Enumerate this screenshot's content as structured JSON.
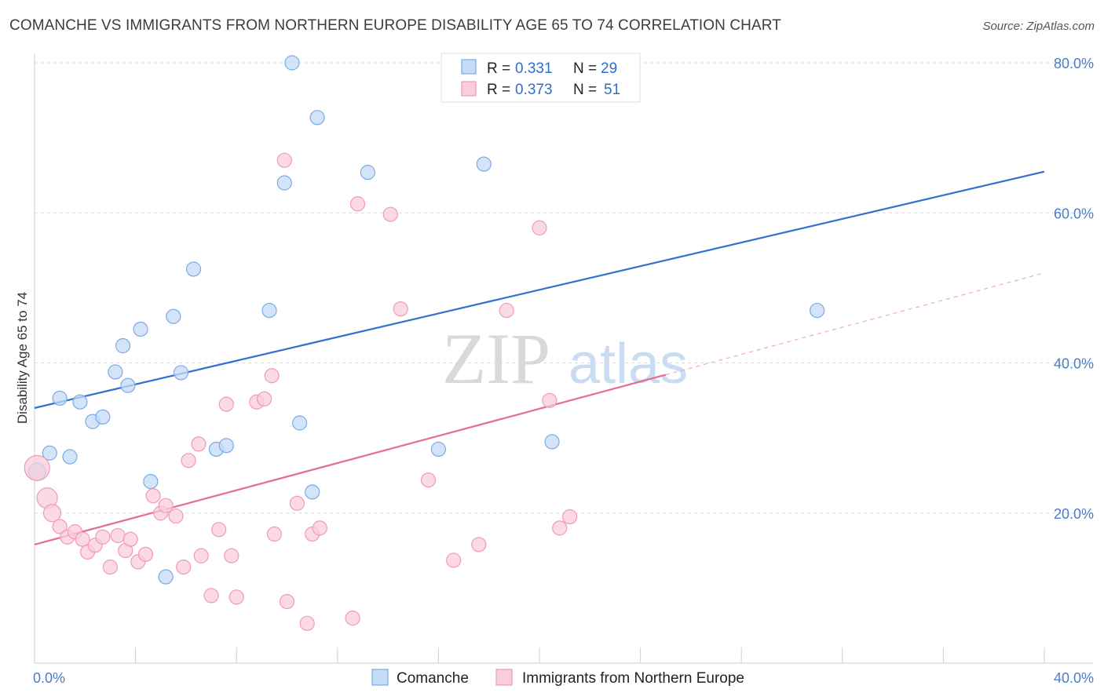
{
  "title": "COMANCHE VS IMMIGRANTS FROM NORTHERN EUROPE DISABILITY AGE 65 TO 74 CORRELATION CHART",
  "source": "Source: ZipAtlas.com",
  "chart_data": {
    "type": "scatter",
    "ylabel": "Disability Age 65 to 74",
    "xlim": [
      0,
      40
    ],
    "ylim": [
      0,
      80
    ],
    "x_tick_labels": [
      {
        "value": 0,
        "label": "0.0%"
      },
      {
        "value": 40,
        "label": "40.0%"
      }
    ],
    "y_tick_labels": [
      {
        "value": 20,
        "label": "20.0%"
      },
      {
        "value": 40,
        "label": "40.0%"
      },
      {
        "value": 60,
        "label": "60.0%"
      },
      {
        "value": 80,
        "label": "80.0%"
      }
    ],
    "grid": true,
    "watermark": {
      "zip": "ZIP",
      "atlas": "atlas"
    },
    "legend": {
      "rows": [
        {
          "r_label": "R =",
          "r_value": "0.331",
          "n_label": "N =",
          "n_value": "29"
        },
        {
          "r_label": "R =",
          "r_value": "0.373",
          "n_label": "N =",
          "n_value": "51"
        }
      ]
    },
    "series": [
      {
        "name": "Comanche",
        "color": "#7aaae8",
        "fill": "#c5dbf6",
        "trend": {
          "x0": 0,
          "y0": 34.0,
          "x1": 40,
          "y1": 65.5,
          "dashed_from": null
        },
        "points": [
          [
            0.1,
            25.5
          ],
          [
            0.6,
            28.0
          ],
          [
            1.0,
            35.3
          ],
          [
            1.4,
            27.5
          ],
          [
            1.8,
            34.8
          ],
          [
            2.3,
            32.2
          ],
          [
            2.7,
            32.8
          ],
          [
            3.2,
            38.8
          ],
          [
            3.5,
            42.3
          ],
          [
            3.7,
            37.0
          ],
          [
            4.2,
            44.5
          ],
          [
            4.6,
            24.2
          ],
          [
            5.2,
            11.5
          ],
          [
            5.5,
            46.2
          ],
          [
            5.8,
            38.7
          ],
          [
            6.3,
            52.5
          ],
          [
            7.2,
            28.5
          ],
          [
            7.6,
            29.0
          ],
          [
            9.3,
            47.0
          ],
          [
            9.9,
            64.0
          ],
          [
            10.2,
            80.0
          ],
          [
            10.5,
            32.0
          ],
          [
            11.0,
            22.8
          ],
          [
            11.2,
            72.7
          ],
          [
            13.2,
            65.4
          ],
          [
            16.0,
            28.5
          ],
          [
            17.8,
            66.5
          ],
          [
            20.5,
            29.5
          ],
          [
            31.0,
            47.0
          ]
        ]
      },
      {
        "name": "Immigrants from Northern Europe",
        "color": "#f09ab4",
        "fill": "#f9cdd9",
        "trend": {
          "x0": 0,
          "y0": 15.8,
          "x1": 40,
          "y1": 52.0,
          "solid_until_x": 25.0
        },
        "points": [
          [
            0.1,
            26.0
          ],
          [
            0.5,
            22.0
          ],
          [
            0.7,
            20.0
          ],
          [
            1.0,
            18.2
          ],
          [
            1.3,
            16.8
          ],
          [
            1.6,
            17.5
          ],
          [
            1.9,
            16.5
          ],
          [
            2.1,
            14.8
          ],
          [
            2.4,
            15.7
          ],
          [
            2.7,
            16.8
          ],
          [
            3.0,
            12.8
          ],
          [
            3.3,
            17.0
          ],
          [
            3.6,
            15.0
          ],
          [
            3.8,
            16.5
          ],
          [
            4.1,
            13.5
          ],
          [
            4.4,
            14.5
          ],
          [
            4.7,
            22.3
          ],
          [
            5.0,
            20.0
          ],
          [
            5.2,
            21.0
          ],
          [
            5.6,
            19.6
          ],
          [
            5.9,
            12.8
          ],
          [
            6.1,
            27.0
          ],
          [
            6.5,
            29.2
          ],
          [
            6.6,
            14.3
          ],
          [
            7.0,
            9.0
          ],
          [
            7.3,
            17.8
          ],
          [
            7.6,
            34.5
          ],
          [
            7.8,
            14.3
          ],
          [
            8.0,
            8.8
          ],
          [
            8.8,
            34.8
          ],
          [
            9.1,
            35.2
          ],
          [
            9.4,
            38.3
          ],
          [
            9.5,
            17.2
          ],
          [
            9.9,
            67.0
          ],
          [
            10.0,
            8.2
          ],
          [
            10.4,
            21.3
          ],
          [
            10.8,
            5.3
          ],
          [
            11.0,
            17.2
          ],
          [
            11.3,
            18.0
          ],
          [
            12.6,
            6.0
          ],
          [
            12.8,
            61.2
          ],
          [
            14.1,
            59.8
          ],
          [
            14.5,
            47.2
          ],
          [
            15.6,
            24.4
          ],
          [
            16.6,
            13.7
          ],
          [
            17.6,
            15.8
          ],
          [
            18.7,
            47.0
          ],
          [
            20.0,
            58.0
          ],
          [
            20.4,
            35.0
          ],
          [
            20.8,
            18.0
          ],
          [
            21.2,
            19.5
          ]
        ]
      }
    ]
  }
}
